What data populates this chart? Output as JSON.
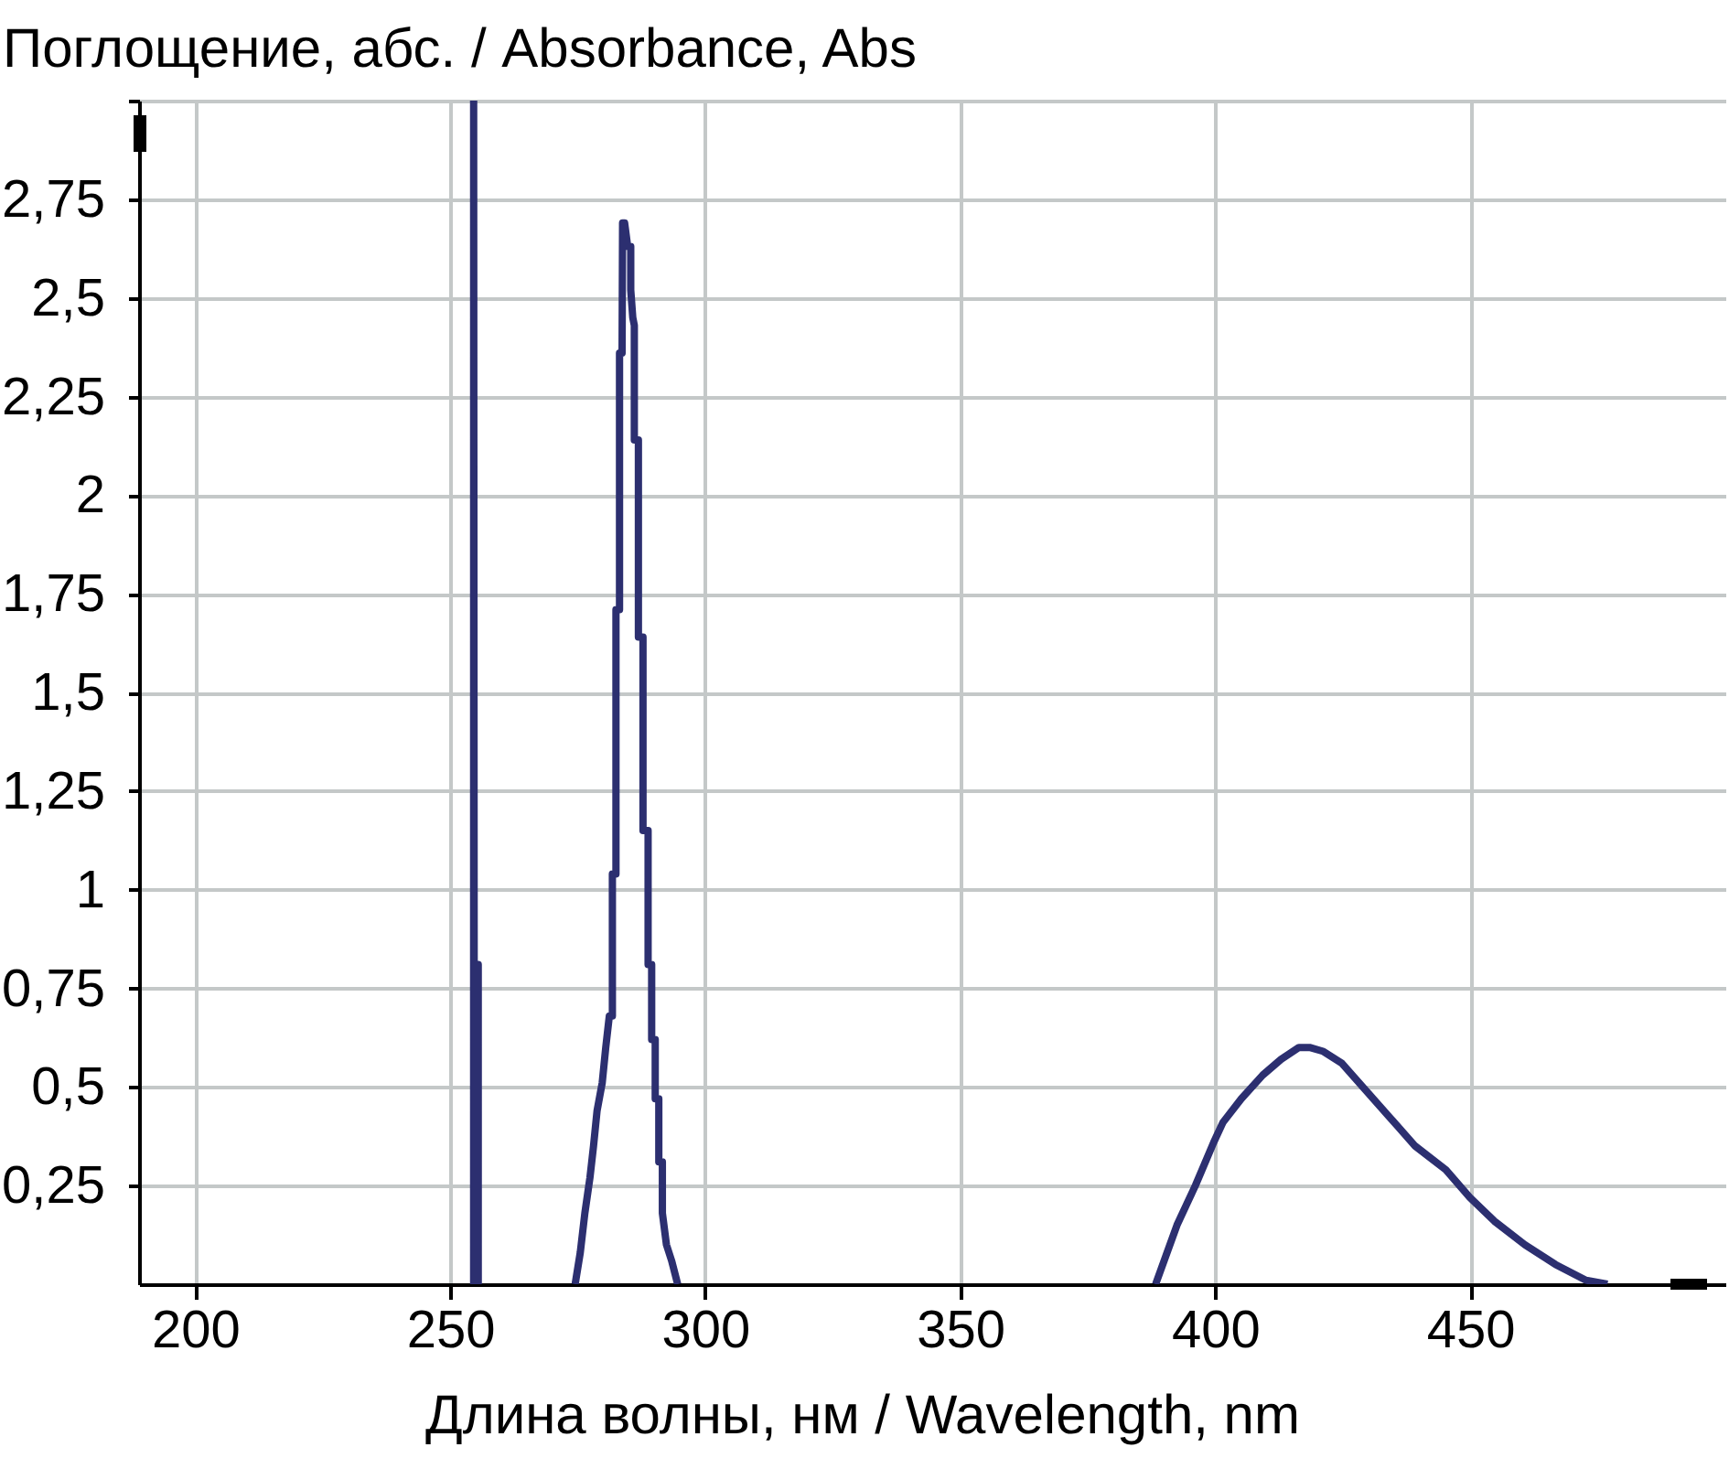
{
  "chart_data": {
    "type": "line",
    "xlabel": "Длина волны, нм / Wavelength, nm",
    "ylabel": "Поглощение, абс. / Absorbance, Abs",
    "x": [
      254.6,
      254.6,
      254.7,
      255.5,
      255.5,
      265,
      274.5,
      275.5,
      276.4,
      277.4,
      278.1,
      278.8,
      279.8,
      280.5,
      281.2,
      281.8,
      281.8,
      282.5,
      282.5,
      283.2,
      283.2,
      283.7,
      283.8,
      284.2,
      284.8,
      285.4,
      285.4,
      285.8,
      286.1,
      286.1,
      286.9,
      286.9,
      287.8,
      287.8,
      288.8,
      288.8,
      289.5,
      289.5,
      290.2,
      290.2,
      290.9,
      290.9,
      291.6,
      291.6,
      292.4,
      293.4,
      294.6,
      340,
      388.3,
      392.5,
      396.1,
      399.7,
      401.5,
      405.1,
      409.3,
      412.9,
      416.4,
      418.5,
      421.2,
      424.8,
      429.6,
      434.4,
      439.2,
      445.2,
      449.9,
      454.7,
      460.7,
      466.7,
      472.7,
      476.9
    ],
    "series": [
      {
        "color": "#2c2f70",
        "values": [
          0,
          3,
          0.81,
          0.81,
          0,
          null,
          0,
          0.08,
          0.18,
          0.27,
          0.35,
          0.44,
          0.51,
          0.6,
          0.68,
          0.68,
          1.04,
          1.04,
          1.71,
          1.71,
          2.36,
          2.36,
          2.69,
          2.69,
          2.63,
          2.63,
          2.52,
          2.45,
          2.43,
          2.14,
          2.14,
          1.64,
          1.64,
          1.15,
          1.15,
          0.81,
          0.81,
          0.62,
          0.62,
          0.47,
          0.47,
          0.31,
          0.31,
          0.18,
          0.1,
          0.06,
          0,
          null,
          0,
          0.15,
          0.25,
          0.36,
          0.41,
          0.47,
          0.53,
          0.57,
          0.6,
          0.6,
          0.59,
          0.56,
          0.49,
          0.42,
          0.35,
          0.29,
          0.22,
          0.16,
          0.1,
          0.05,
          0.01,
          0
        ]
      }
    ],
    "xlim": [
      189,
      500
    ],
    "ylim": [
      0,
      3
    ],
    "xticks": [
      200,
      250,
      300,
      350,
      400,
      450
    ],
    "yticks": [
      {
        "value": 0.25,
        "label": "0,25"
      },
      {
        "value": 0.5,
        "label": "0,5"
      },
      {
        "value": 0.75,
        "label": "0,75"
      },
      1,
      {
        "value": 1.25,
        "label": "1,25"
      },
      {
        "value": 1.5,
        "label": "1,5"
      },
      {
        "value": 1.75,
        "label": "1,75"
      },
      2,
      {
        "value": 2.25,
        "label": "2,25"
      },
      {
        "value": 2.5,
        "label": "2,5"
      },
      {
        "value": 2.75,
        "label": "2,75"
      },
      {
        "value": 3,
        "label": null
      }
    ],
    "grid": true
  }
}
